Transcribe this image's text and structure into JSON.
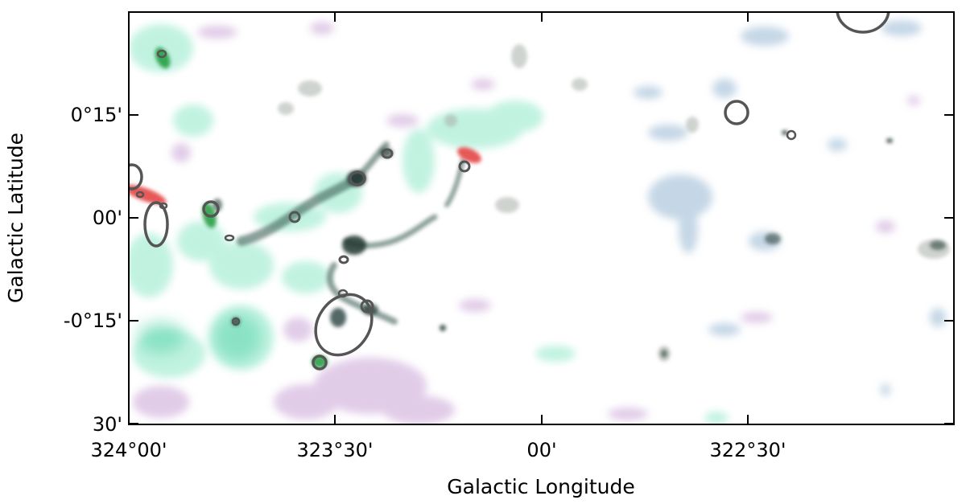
{
  "image": {
    "type": "astronomical-map",
    "colors": {
      "cyan": "#8fe8c8",
      "purple": "#c9a3d6",
      "blue": "#9fbcd6",
      "grey": "#a8b0a8",
      "dark": "#1e3530",
      "red": "#e33a3a",
      "green": "#1c9a3a",
      "contour": "#555555"
    }
  },
  "axes": {
    "xlabel": "Galactic Longitude",
    "ylabel": "Galactic Latitude",
    "x_ticks": [
      "324°00'",
      "323°30'",
      "00'",
      "322°30'"
    ],
    "y_ticks": [
      "0°15'",
      "00'",
      "-0°15'",
      "30'"
    ]
  }
}
